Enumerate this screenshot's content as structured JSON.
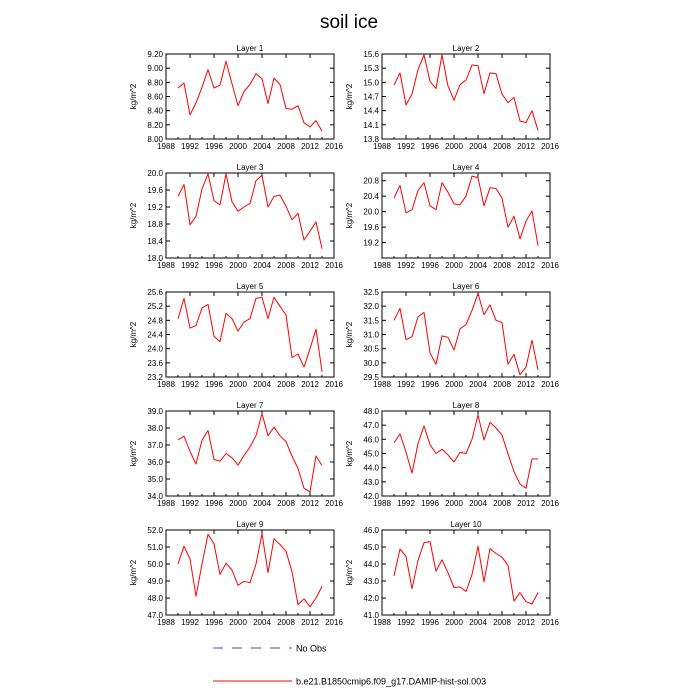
{
  "figure": {
    "title": "soil ice",
    "legend": [
      {
        "label": "No Obs",
        "style": "dashed",
        "color": "#4a4aa8"
      },
      {
        "label": "b.e21.B1850cmip6.f09_g17.DAMIP-hist-sol.003",
        "style": "solid",
        "color": "#ff0000"
      }
    ]
  },
  "chart_data": [
    {
      "type": "line",
      "title": "Layer 1",
      "xlabel": "",
      "ylabel": "kg/m^2",
      "xlim": [
        1988,
        2016
      ],
      "ylim": [
        8.0,
        9.2
      ],
      "xticks": [
        "1988",
        "1992",
        "1996",
        "2000",
        "2004",
        "2008",
        "2012",
        "2016"
      ],
      "yticks": [
        "8.00",
        "8.20",
        "8.40",
        "8.60",
        "8.80",
        "9.00",
        "9.20"
      ],
      "series": [
        {
          "color": "#ff0000",
          "x": [
            1990,
            1991,
            1992,
            1993,
            1994,
            1995,
            1996,
            1997,
            1998,
            1999,
            2000,
            2001,
            2002,
            2003,
            2004,
            2005,
            2006,
            2007,
            2008,
            2009,
            2010,
            2011,
            2012,
            2013,
            2014
          ],
          "values": [
            8.72,
            8.79,
            8.34,
            8.51,
            8.73,
            8.98,
            8.72,
            8.76,
            9.1,
            8.78,
            8.47,
            8.67,
            8.77,
            8.92,
            8.85,
            8.5,
            8.86,
            8.77,
            8.43,
            8.42,
            8.47,
            8.23,
            8.17,
            8.26,
            8.11
          ]
        }
      ]
    },
    {
      "type": "line",
      "title": "Layer 2",
      "xlabel": "",
      "ylabel": "kg/m^2",
      "xlim": [
        1988,
        2016
      ],
      "ylim": [
        13.8,
        15.6
      ],
      "xticks": [
        "1988",
        "1992",
        "1996",
        "2000",
        "2004",
        "2008",
        "2012",
        "2016"
      ],
      "yticks": [
        "13.8",
        "14.1",
        "14.4",
        "14.7",
        "15.0",
        "15.3",
        "15.6"
      ],
      "series": [
        {
          "color": "#ff0000",
          "x": [
            1990,
            1991,
            1992,
            1993,
            1994,
            1995,
            1996,
            1997,
            1998,
            1999,
            2000,
            2001,
            2002,
            2003,
            2004,
            2005,
            2006,
            2007,
            2008,
            2009,
            2010,
            2011,
            2012,
            2013,
            2014
          ],
          "values": [
            14.94,
            15.2,
            14.52,
            14.75,
            15.27,
            15.58,
            15.02,
            14.87,
            15.58,
            14.92,
            14.62,
            14.95,
            15.05,
            15.37,
            15.35,
            14.76,
            15.2,
            15.18,
            14.75,
            14.57,
            14.68,
            14.18,
            14.15,
            14.4,
            13.98
          ]
        }
      ]
    },
    {
      "type": "line",
      "title": "Layer 3",
      "xlabel": "",
      "ylabel": "kg/m^2",
      "xlim": [
        1988,
        2016
      ],
      "ylim": [
        18.0,
        20.0
      ],
      "xticks": [
        "1988",
        "1992",
        "1996",
        "2000",
        "2004",
        "2008",
        "2012",
        "2016"
      ],
      "yticks": [
        "18.0",
        "18.4",
        "18.8",
        "19.2",
        "19.6",
        "20.0"
      ],
      "series": [
        {
          "color": "#ff0000",
          "x": [
            1990,
            1991,
            1992,
            1993,
            1994,
            1995,
            1996,
            1997,
            1998,
            1999,
            2000,
            2001,
            2002,
            2003,
            2004,
            2005,
            2006,
            2007,
            2008,
            2009,
            2010,
            2011,
            2012,
            2013,
            2014
          ],
          "values": [
            19.45,
            19.73,
            18.78,
            18.98,
            19.62,
            19.98,
            19.35,
            19.25,
            19.98,
            19.32,
            19.1,
            19.2,
            19.28,
            19.82,
            19.95,
            19.2,
            19.45,
            19.48,
            19.22,
            18.9,
            19.05,
            18.42,
            18.63,
            18.85,
            18.22
          ]
        }
      ]
    },
    {
      "type": "line",
      "title": "Layer 4",
      "xlabel": "",
      "ylabel": "kg/m^2",
      "xlim": [
        1988,
        2016
      ],
      "ylim": [
        18.8,
        21.0
      ],
      "xticks": [
        "1988",
        "1992",
        "1996",
        "2000",
        "2004",
        "2008",
        "2012",
        "2016"
      ],
      "yticks": [
        "19.2",
        "19.6",
        "20.0",
        "20.4",
        "20.8"
      ],
      "series": [
        {
          "color": "#ff0000",
          "x": [
            1990,
            1991,
            1992,
            1993,
            1994,
            1995,
            1996,
            1997,
            1998,
            1999,
            2000,
            2001,
            2002,
            2003,
            2004,
            2005,
            2006,
            2007,
            2008,
            2009,
            2010,
            2011,
            2012,
            2013,
            2014
          ],
          "values": [
            20.35,
            20.68,
            19.97,
            20.05,
            20.55,
            20.75,
            20.15,
            20.05,
            20.75,
            20.5,
            20.2,
            20.18,
            20.4,
            20.92,
            20.88,
            20.15,
            20.62,
            20.6,
            20.35,
            19.6,
            19.88,
            19.3,
            19.75,
            20.02,
            19.12
          ]
        }
      ]
    },
    {
      "type": "line",
      "title": "Layer 5",
      "xlabel": "",
      "ylabel": "kg/m^2",
      "xlim": [
        1988,
        2016
      ],
      "ylim": [
        23.2,
        25.6
      ],
      "xticks": [
        "1988",
        "1992",
        "1996",
        "2000",
        "2004",
        "2008",
        "2012",
        "2016"
      ],
      "yticks": [
        "23.2",
        "23.6",
        "24.0",
        "24.4",
        "24.8",
        "25.2",
        "25.6"
      ],
      "series": [
        {
          "color": "#ff0000",
          "x": [
            1990,
            1991,
            1992,
            1993,
            1994,
            1995,
            1996,
            1997,
            1998,
            1999,
            2000,
            2001,
            2002,
            2003,
            2004,
            2005,
            2006,
            2007,
            2008,
            2009,
            2010,
            2011,
            2012,
            2013,
            2014
          ],
          "values": [
            24.85,
            25.42,
            24.58,
            24.65,
            25.15,
            25.25,
            24.35,
            24.2,
            25.0,
            24.85,
            24.5,
            24.75,
            24.85,
            25.42,
            25.45,
            24.85,
            25.45,
            25.2,
            24.95,
            23.75,
            23.85,
            23.48,
            24.0,
            24.55,
            23.35
          ]
        }
      ]
    },
    {
      "type": "line",
      "title": "Layer 6",
      "xlabel": "",
      "ylabel": "kg/m^2",
      "xlim": [
        1988,
        2016
      ],
      "ylim": [
        29.5,
        32.5
      ],
      "xticks": [
        "1988",
        "1992",
        "1996",
        "2000",
        "2004",
        "2008",
        "2012",
        "2016"
      ],
      "yticks": [
        "29.5",
        "30.0",
        "30.5",
        "31.0",
        "31.5",
        "32.0",
        "32.5"
      ],
      "series": [
        {
          "color": "#ff0000",
          "x": [
            1990,
            1991,
            1992,
            1993,
            1994,
            1995,
            1996,
            1997,
            1998,
            1999,
            2000,
            2001,
            2002,
            2003,
            2004,
            2005,
            2006,
            2007,
            2008,
            2009,
            2010,
            2011,
            2012,
            2013,
            2014
          ],
          "values": [
            31.5,
            31.92,
            30.82,
            30.92,
            31.62,
            31.78,
            30.35,
            29.95,
            30.95,
            30.9,
            30.45,
            31.2,
            31.35,
            31.85,
            32.45,
            31.7,
            32.05,
            31.5,
            31.42,
            29.95,
            30.3,
            29.58,
            29.85,
            30.8,
            29.75
          ]
        }
      ]
    },
    {
      "type": "line",
      "title": "Layer 7",
      "xlabel": "",
      "ylabel": "kg/m^2",
      "xlim": [
        1988,
        2016
      ],
      "ylim": [
        34.0,
        39.0
      ],
      "xticks": [
        "1988",
        "1992",
        "1996",
        "2000",
        "2004",
        "2008",
        "2012",
        "2016"
      ],
      "yticks": [
        "34.0",
        "35.0",
        "36.0",
        "37.0",
        "38.0",
        "39.0"
      ],
      "series": [
        {
          "color": "#ff0000",
          "x": [
            1990,
            1991,
            1992,
            1993,
            1994,
            1995,
            1996,
            1997,
            1998,
            1999,
            2000,
            2001,
            2002,
            2003,
            2004,
            2005,
            2006,
            2007,
            2008,
            2009,
            2010,
            2011,
            2012,
            2013,
            2014
          ],
          "values": [
            37.3,
            37.52,
            36.62,
            35.88,
            37.28,
            37.85,
            36.15,
            36.05,
            36.5,
            36.25,
            35.82,
            36.38,
            36.88,
            37.55,
            38.85,
            37.55,
            38.05,
            37.55,
            37.2,
            36.35,
            35.62,
            34.45,
            34.25,
            36.35,
            35.8
          ]
        }
      ]
    },
    {
      "type": "line",
      "title": "Layer 8",
      "xlabel": "",
      "ylabel": "kg/m^2",
      "xlim": [
        1988,
        2016
      ],
      "ylim": [
        42.0,
        48.0
      ],
      "xticks": [
        "1988",
        "1992",
        "1996",
        "2000",
        "2004",
        "2008",
        "2012",
        "2016"
      ],
      "yticks": [
        "42.0",
        "43.0",
        "44.0",
        "45.0",
        "46.0",
        "47.0",
        "48.0"
      ],
      "series": [
        {
          "color": "#ff0000",
          "x": [
            1990,
            1991,
            1992,
            1993,
            1994,
            1995,
            1996,
            1997,
            1998,
            1999,
            2000,
            2001,
            2002,
            2003,
            2004,
            2005,
            2006,
            2007,
            2008,
            2009,
            2010,
            2011,
            2012,
            2013,
            2014
          ],
          "values": [
            45.75,
            46.38,
            45.1,
            43.62,
            45.7,
            46.95,
            45.62,
            45.0,
            45.3,
            44.9,
            44.4,
            45.08,
            45.0,
            46.0,
            47.72,
            45.95,
            47.2,
            46.8,
            46.3,
            44.98,
            43.72,
            42.85,
            42.55,
            44.62,
            44.62
          ]
        }
      ]
    },
    {
      "type": "line",
      "title": "Layer 9",
      "xlabel": "",
      "ylabel": "kg/m^2",
      "xlim": [
        1988,
        2016
      ],
      "ylim": [
        47.0,
        52.0
      ],
      "xticks": [
        "1988",
        "1992",
        "1996",
        "2000",
        "2004",
        "2008",
        "2012",
        "2016"
      ],
      "yticks": [
        "47.0",
        "48.0",
        "49.0",
        "50.0",
        "51.0",
        "52.0"
      ],
      "series": [
        {
          "color": "#ff0000",
          "x": [
            1990,
            1991,
            1992,
            1993,
            1994,
            1995,
            1996,
            1997,
            1998,
            1999,
            2000,
            2001,
            2002,
            2003,
            2004,
            2005,
            2006,
            2007,
            2008,
            2009,
            2010,
            2011,
            2012,
            2013,
            2014
          ],
          "values": [
            50.0,
            51.05,
            50.3,
            48.1,
            50.0,
            51.75,
            51.2,
            49.38,
            50.05,
            49.65,
            48.75,
            48.98,
            48.9,
            50.0,
            51.78,
            49.5,
            51.48,
            51.15,
            50.75,
            49.55,
            47.62,
            47.95,
            47.48,
            48.0,
            48.68
          ]
        }
      ]
    },
    {
      "type": "line",
      "title": "Layer 10",
      "xlabel": "",
      "ylabel": "kg/m^2",
      "xlim": [
        1988,
        2016
      ],
      "ylim": [
        41.0,
        46.0
      ],
      "xticks": [
        "1988",
        "1992",
        "1996",
        "2000",
        "2004",
        "2008",
        "2012",
        "2016"
      ],
      "yticks": [
        "41.0",
        "42.0",
        "43.0",
        "44.0",
        "45.0",
        "46.0"
      ],
      "series": [
        {
          "color": "#ff0000",
          "x": [
            1990,
            1991,
            1992,
            1993,
            1994,
            1995,
            1996,
            1997,
            1998,
            1999,
            2000,
            2001,
            2002,
            2003,
            2004,
            2005,
            2006,
            2007,
            2008,
            2009,
            2010,
            2011,
            2012,
            2013,
            2014
          ],
          "values": [
            43.3,
            44.88,
            44.45,
            42.55,
            44.22,
            45.25,
            45.32,
            43.58,
            44.25,
            43.48,
            42.62,
            42.65,
            42.38,
            43.38,
            45.05,
            42.95,
            44.9,
            44.62,
            44.4,
            43.92,
            41.82,
            42.32,
            41.78,
            41.65,
            42.32
          ]
        }
      ]
    }
  ]
}
